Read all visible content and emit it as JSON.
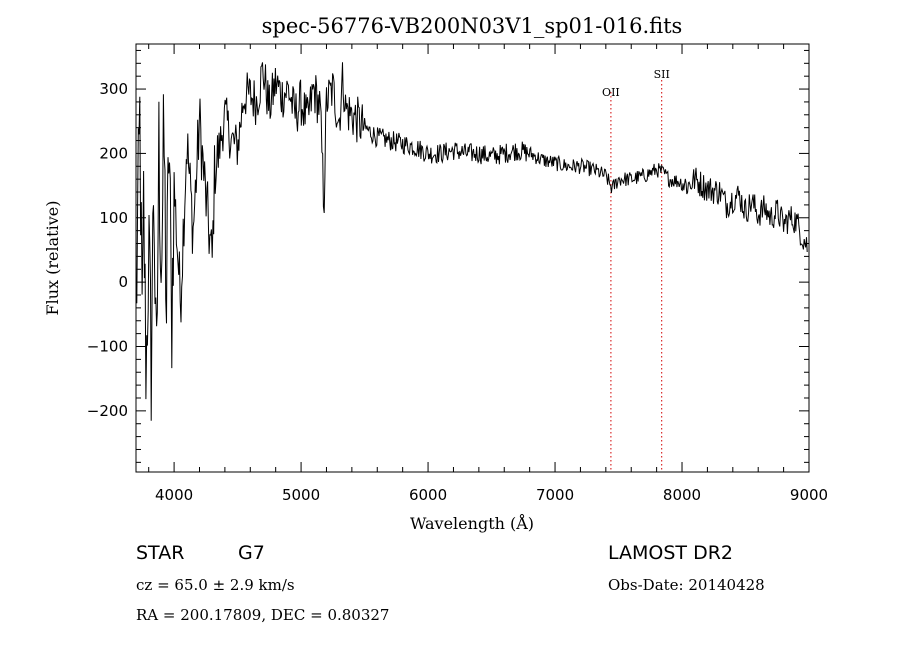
{
  "chart_data": {
    "type": "line",
    "title": "spec-56776-VB200N03V1_sp01-016.fits",
    "xlabel": "Wavelength (Å)",
    "ylabel": "Flux (relative)",
    "xlim": [
      3700,
      9000
    ],
    "ylim": [
      -295,
      370
    ],
    "x_ticks": [
      4000,
      5000,
      6000,
      7000,
      8000,
      9000
    ],
    "x_tick_labels": [
      "4000",
      "5000",
      "6000",
      "7000",
      "8000",
      "9000"
    ],
    "y_ticks": [
      300,
      200,
      100,
      0,
      -100,
      -200
    ],
    "y_tick_labels": [
      "300",
      "200",
      "100",
      "0",
      "−100",
      "−200"
    ],
    "line_color": "#000000",
    "marker_color": "#d00000",
    "line_markers": [
      {
        "label": "OII",
        "x": 7440
      },
      {
        "label": "SII",
        "x": 7840
      }
    ],
    "series": [
      {
        "x": [
          3700,
          3730,
          3750,
          3760,
          3780,
          3800,
          3820,
          3840,
          3860,
          3880,
          3900,
          3920,
          3940,
          3960,
          3980,
          4000,
          4050,
          4100,
          4150,
          4200,
          4250,
          4300,
          4320,
          4350,
          4400,
          4450,
          4500,
          4550,
          4600,
          4650,
          4700,
          4750,
          4800,
          4850,
          4900,
          4950,
          5000,
          5050,
          5100,
          5150,
          5180,
          5200,
          5250,
          5300,
          5330,
          5350,
          5400,
          5450,
          5500,
          5600,
          5700,
          5800,
          5900,
          6000,
          6100,
          6200,
          6300,
          6400,
          6500,
          6600,
          6700,
          6800,
          6900,
          7000,
          7100,
          7200,
          7300,
          7400,
          7450,
          7500,
          7600,
          7700,
          7800,
          7850,
          7900,
          8000,
          8050,
          8100,
          8200,
          8300,
          8350,
          8400,
          8450,
          8500,
          8550,
          8600,
          8650,
          8700,
          8750,
          8800,
          8850,
          8900,
          8950,
          8990
        ],
        "y": [
          -50,
          250,
          -100,
          120,
          -140,
          60,
          -130,
          180,
          -190,
          210,
          20,
          230,
          -50,
          240,
          -70,
          150,
          -30,
          220,
          80,
          250,
          130,
          30,
          180,
          200,
          260,
          220,
          210,
          290,
          290,
          280,
          330,
          270,
          310,
          290,
          300,
          260,
          280,
          250,
          300,
          270,
          120,
          280,
          300,
          250,
          320,
          270,
          260,
          250,
          240,
          225,
          220,
          215,
          210,
          200,
          200,
          205,
          200,
          200,
          195,
          200,
          205,
          200,
          190,
          185,
          180,
          180,
          175,
          165,
          145,
          160,
          160,
          165,
          175,
          170,
          160,
          155,
          150,
          160,
          145,
          140,
          120,
          130,
          135,
          110,
          125,
          105,
          115,
          100,
          110,
          90,
          100,
          95,
          70,
          55
        ]
      }
    ]
  },
  "footer": {
    "class_label": "STAR",
    "subclass_label": "G7",
    "survey": "LAMOST DR2",
    "cz_text": "cz = 65.0 ± 2.9 km/s",
    "obs_date": "Obs-Date: 20140428",
    "coords": "RA = 200.17809, DEC =   0.80327"
  }
}
